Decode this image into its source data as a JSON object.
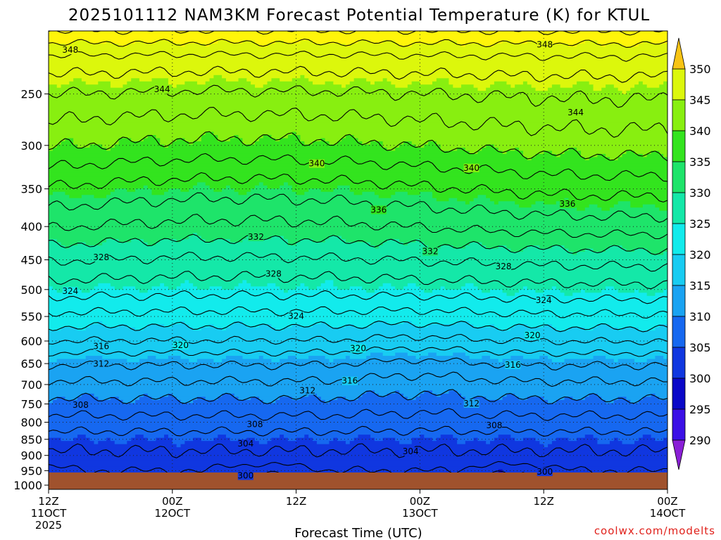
{
  "chart_data": {
    "type": "heatmap",
    "title": "2025101112 NAM3KM Forecast Potential Temperature (K) for KTUL",
    "xlabel": "Forecast Time (UTC)",
    "ylabel": "",
    "y_axis": {
      "ticks": [
        250,
        300,
        350,
        400,
        450,
        500,
        550,
        600,
        650,
        700,
        750,
        800,
        850,
        900,
        950,
        1000
      ],
      "range": [
        1015,
        200
      ],
      "scale": "log-pressure"
    },
    "x_axis": {
      "range_hours": [
        0,
        60
      ],
      "ticks": [
        {
          "hour": 0,
          "line1": "12Z",
          "line2": "11OCT",
          "line3": "2025"
        },
        {
          "hour": 12,
          "line1": "00Z",
          "line2": "12OCT",
          "line3": ""
        },
        {
          "hour": 24,
          "line1": "12Z",
          "line2": "",
          "line3": ""
        },
        {
          "hour": 36,
          "line1": "00Z",
          "line2": "13OCT",
          "line3": ""
        },
        {
          "hour": 48,
          "line1": "12Z",
          "line2": "",
          "line3": ""
        },
        {
          "hour": 60,
          "line1": "00Z",
          "line2": "14OCT",
          "line3": ""
        }
      ]
    },
    "colorbar": {
      "labels": [
        350,
        345,
        340,
        335,
        330,
        325,
        320,
        315,
        310,
        305,
        300,
        295,
        290
      ],
      "bands": [
        {
          "min": 285,
          "max": 290,
          "color": "#8a1fd6"
        },
        {
          "min": 290,
          "max": 295,
          "color": "#3b10e6"
        },
        {
          "min": 295,
          "max": 300,
          "color": "#0a08c8"
        },
        {
          "min": 300,
          "max": 305,
          "color": "#1037e0"
        },
        {
          "min": 305,
          "max": 310,
          "color": "#1668f0"
        },
        {
          "min": 310,
          "max": 315,
          "color": "#1aa3f2"
        },
        {
          "min": 315,
          "max": 320,
          "color": "#18ccf2"
        },
        {
          "min": 320,
          "max": 325,
          "color": "#12ebec"
        },
        {
          "min": 325,
          "max": 330,
          "color": "#14e8a8"
        },
        {
          "min": 330,
          "max": 335,
          "color": "#1ee46a"
        },
        {
          "min": 335,
          "max": 340,
          "color": "#33e41e"
        },
        {
          "min": 340,
          "max": 345,
          "color": "#88ef10"
        },
        {
          "min": 345,
          "max": 350,
          "color": "#dcf70c"
        },
        {
          "min": 350,
          "max": 355,
          "color": "#fff50a"
        },
        {
          "min": 355,
          "max": 365,
          "color": "#f8c414"
        }
      ]
    },
    "contour_interval": 2,
    "theta_profile": {
      "pressure": [
        1015,
        975,
        950,
        925,
        900,
        850,
        800,
        750,
        700,
        650,
        600,
        550,
        500,
        450,
        400,
        350,
        300,
        250,
        220,
        200
      ],
      "theta": [
        299.0,
        301.0,
        302.0,
        303.0,
        303.6,
        305.0,
        307.2,
        309.4,
        311.6,
        314.2,
        318.0,
        321.5,
        325.0,
        328.2,
        332.2,
        335.8,
        340.2,
        344.0,
        347.6,
        352.0
      ]
    },
    "contour_labels": [
      {
        "value": 348,
        "hour": 2.1,
        "pressure": 214
      },
      {
        "value": 348,
        "hour": 48.1,
        "pressure": 210
      },
      {
        "value": 344,
        "hour": 11.0,
        "pressure": 246
      },
      {
        "value": 344,
        "hour": 51.1,
        "pressure": 267
      },
      {
        "value": 340,
        "hour": 26.0,
        "pressure": 320
      },
      {
        "value": 340,
        "hour": 41.0,
        "pressure": 325
      },
      {
        "value": 336,
        "hour": 32.0,
        "pressure": 377
      },
      {
        "value": 336,
        "hour": 50.3,
        "pressure": 369
      },
      {
        "value": 332,
        "hour": 20.1,
        "pressure": 415
      },
      {
        "value": 332,
        "hour": 37.0,
        "pressure": 437
      },
      {
        "value": 328,
        "hour": 5.1,
        "pressure": 446
      },
      {
        "value": 328,
        "hour": 21.8,
        "pressure": 473
      },
      {
        "value": 328,
        "hour": 44.1,
        "pressure": 461
      },
      {
        "value": 324,
        "hour": 2.1,
        "pressure": 503
      },
      {
        "value": 324,
        "hour": 24.0,
        "pressure": 549
      },
      {
        "value": 324,
        "hour": 48.0,
        "pressure": 519
      },
      {
        "value": 320,
        "hour": 12.8,
        "pressure": 609
      },
      {
        "value": 320,
        "hour": 30.0,
        "pressure": 616
      },
      {
        "value": 320,
        "hour": 46.9,
        "pressure": 588
      },
      {
        "value": 316,
        "hour": 5.1,
        "pressure": 611
      },
      {
        "value": 316,
        "hour": 29.2,
        "pressure": 691
      },
      {
        "value": 316,
        "hour": 45.0,
        "pressure": 653
      },
      {
        "value": 312,
        "hour": 5.1,
        "pressure": 651
      },
      {
        "value": 312,
        "hour": 25.1,
        "pressure": 715
      },
      {
        "value": 312,
        "hour": 41.0,
        "pressure": 749
      },
      {
        "value": 308,
        "hour": 3.1,
        "pressure": 753
      },
      {
        "value": 308,
        "hour": 20.0,
        "pressure": 806
      },
      {
        "value": 308,
        "hour": 43.2,
        "pressure": 809
      },
      {
        "value": 304,
        "hour": 19.1,
        "pressure": 863
      },
      {
        "value": 304,
        "hour": 35.1,
        "pressure": 887
      },
      {
        "value": 300,
        "hour": 19.1,
        "pressure": 967
      },
      {
        "value": 300,
        "hour": 48.1,
        "pressure": 954
      }
    ],
    "ground": {
      "color": "#a0522d"
    }
  },
  "credit": "coolwx.com/modelts"
}
